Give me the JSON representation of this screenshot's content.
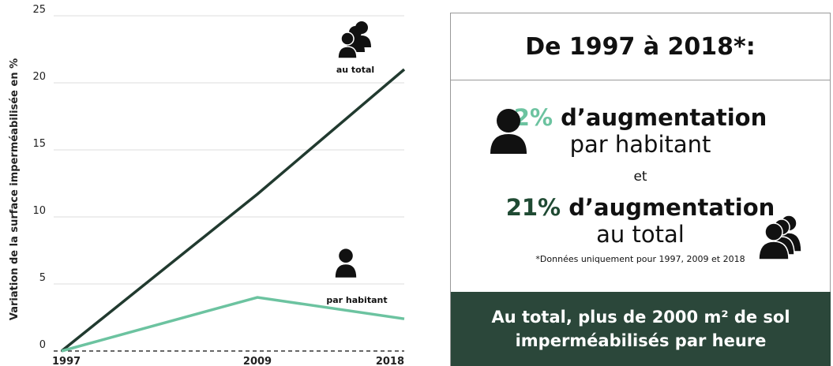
{
  "chart_data": {
    "type": "line",
    "ylabel": "Variation de la surface imperméabilisée en %",
    "x": [
      1997,
      2009,
      2018
    ],
    "series": [
      {
        "name": "au total",
        "color": "#213a2f",
        "values": [
          0,
          11.7,
          21
        ]
      },
      {
        "name": "par habitant",
        "color": "#6cc3a0",
        "values": [
          0,
          4,
          2.4
        ]
      }
    ],
    "xlim": [
      1997,
      2018
    ],
    "xticks": [
      1997,
      2009,
      2018
    ],
    "ylim": [
      0,
      25
    ],
    "yticks": [
      0,
      5,
      10,
      15,
      20,
      25
    ],
    "grid": true
  },
  "panel": {
    "title": "De 1997 à 2018*:",
    "stat1": {
      "value": "2%",
      "text": "d’augmentation",
      "sub": "par habitant"
    },
    "connector": "et",
    "stat2": {
      "value": "21%",
      "text": "d’augmentation",
      "sub": "au total"
    },
    "footnote": "*Données uniquement pour 1997, 2009 et 2018",
    "banner": [
      "Au total, plus de 2000 m² de sol",
      "imperméabilisés par heure"
    ]
  }
}
